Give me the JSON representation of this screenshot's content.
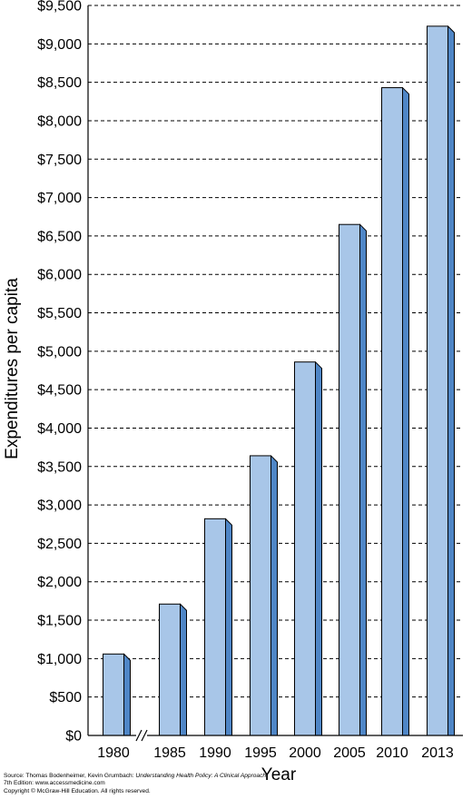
{
  "chart_data": {
    "type": "bar",
    "categories": [
      "1980",
      "1985",
      "1990",
      "1995",
      "2000",
      "2005",
      "2010",
      "2013"
    ],
    "values": [
      1060,
      1710,
      2820,
      3640,
      4860,
      6650,
      8430,
      9230
    ],
    "title": "",
    "xlabel": "Year",
    "ylabel": "Expenditures per capita",
    "ylim": [
      0,
      9500
    ],
    "yticks": [
      "$0",
      "$500",
      "$1,000",
      "$1,500",
      "$2,000",
      "$2,500",
      "$3,000",
      "$3,500",
      "$4,000",
      "$4,500",
      "$5,000",
      "$5,500",
      "$6,000",
      "$6,500",
      "$7,000",
      "$7,500",
      "$8,000",
      "$8,500",
      "$9,000",
      "$9,500"
    ],
    "grid": true,
    "axis_break_after": "1980",
    "colors": {
      "bar_front": "#a8c6e8",
      "bar_side": "#4f86c6",
      "edge": "#000000"
    }
  },
  "source": {
    "prefix": "Source: Thomas Bodenheimer, Kevin Grumbach: ",
    "book_title": "Understanding Health Policy: A Clinical Approach",
    "suffix": ", 7th Edition: www.accessmedicine.com",
    "copyright": "Copyright © McGraw-Hill Education. All rights reserved."
  }
}
